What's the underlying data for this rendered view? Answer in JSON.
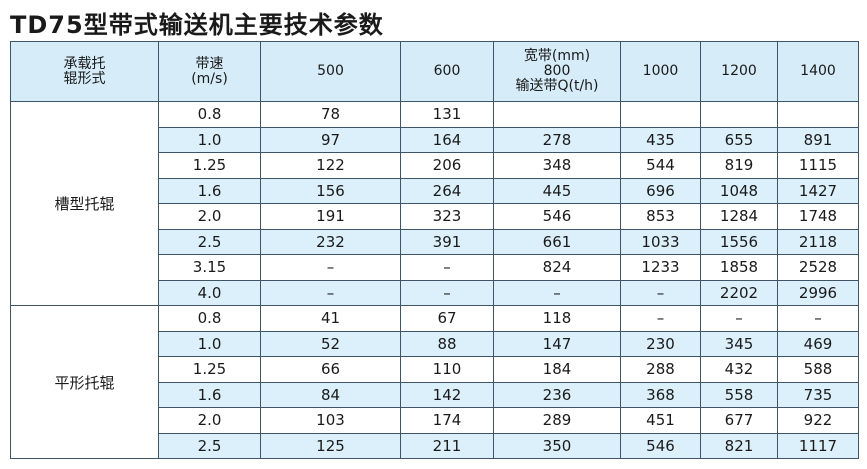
{
  "title": "TD75型带式输送机主要技术参数",
  "table": {
    "header": [
      [
        "承载托",
        "辊形式"
      ],
      [
        "带速",
        "(m/s)"
      ],
      [
        "500"
      ],
      [
        "600"
      ],
      [
        "宽带(mm)",
        "800",
        "输送带Q(t/h)"
      ],
      [
        "1000"
      ],
      [
        "1200"
      ],
      [
        "1400"
      ]
    ],
    "groups": [
      {
        "label": "槽型托辊",
        "rows": [
          [
            "0.8",
            "78",
            "131",
            null,
            null,
            null,
            null
          ],
          [
            "1.0",
            "97",
            "164",
            "278",
            "435",
            "655",
            "891"
          ],
          [
            "1.25",
            "122",
            "206",
            "348",
            "544",
            "819",
            "1115"
          ],
          [
            "1.6",
            "156",
            "264",
            "445",
            "696",
            "1048",
            "1427"
          ],
          [
            "2.0",
            "191",
            "323",
            "546",
            "853",
            "1284",
            "1748"
          ],
          [
            "2.5",
            "232",
            "391",
            "661",
            "1033",
            "1556",
            "2118"
          ],
          [
            "3.15",
            "–",
            "–",
            "824",
            "1233",
            "1858",
            "2528"
          ],
          [
            "4.0",
            "–",
            "–",
            "–",
            "–",
            "2202",
            "2996"
          ]
        ]
      },
      {
        "label": "平形托辊",
        "rows": [
          [
            "0.8",
            "41",
            "67",
            "118",
            "–",
            "–",
            "–"
          ],
          [
            "1.0",
            "52",
            "88",
            "147",
            "230",
            "345",
            "469"
          ],
          [
            "1.25",
            "66",
            "110",
            "184",
            "288",
            "432",
            "588"
          ],
          [
            "1.6",
            "84",
            "142",
            "236",
            "368",
            "558",
            "735"
          ],
          [
            "2.0",
            "103",
            "174",
            "289",
            "451",
            "677",
            "922"
          ],
          [
            "2.5",
            "125",
            "211",
            "350",
            "546",
            "821",
            "1117"
          ]
        ]
      }
    ]
  }
}
